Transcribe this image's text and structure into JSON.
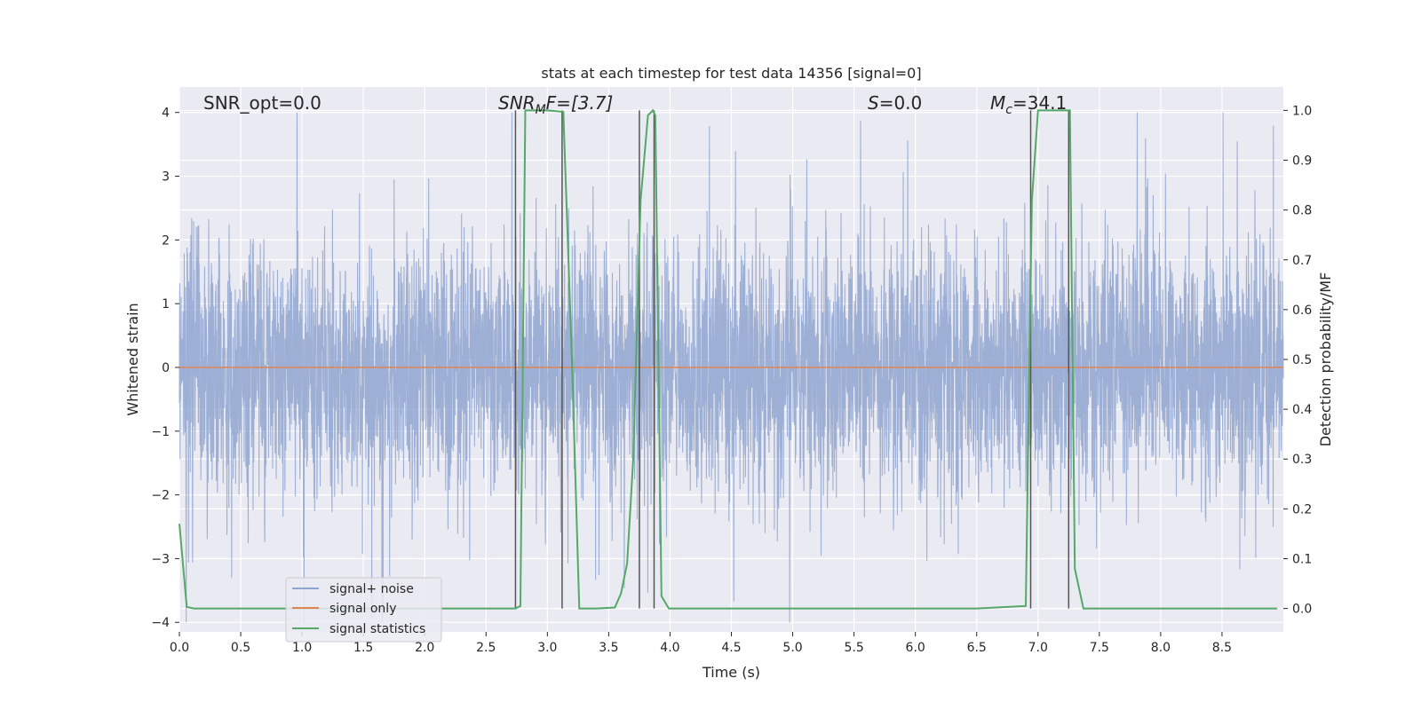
{
  "chart_data": {
    "type": "line",
    "title": "stats at each timestep for test data 14356 [signal=0]",
    "xlabel": "Time (s)",
    "ylabel_left": "Whitened strain",
    "ylabel_right": "Detection probability/MF",
    "xlim": [
      0,
      9
    ],
    "ylim_left": [
      -4.15,
      4.4
    ],
    "ylim_right": [
      -0.047,
      1.047
    ],
    "grid": true,
    "legend_position": "lower-left",
    "x_ticks": [
      "0.0",
      "0.5",
      "1.0",
      "1.5",
      "2.0",
      "2.5",
      "3.0",
      "3.5",
      "4.0",
      "4.5",
      "5.0",
      "5.5",
      "6.0",
      "6.5",
      "7.0",
      "7.5",
      "8.0",
      "8.5"
    ],
    "y_left_ticks": [
      "4",
      "3",
      "2",
      "1",
      "0",
      "−1",
      "−2",
      "−3",
      "−4"
    ],
    "y_right_ticks": [
      "1.0",
      "0.9",
      "0.8",
      "0.7",
      "0.6",
      "0.5",
      "0.4",
      "0.3",
      "0.2",
      "0.1",
      "0.0"
    ],
    "annotations": {
      "snr_opt": "SNR_opt=0.0",
      "snr_mf_main": "SNR",
      "snr_mf_sub": "M",
      "snr_mf_rest": "F=[3.7]",
      "s_main": "S",
      "s_rest": "=0.0",
      "mc_main": "M",
      "mc_sub": "c",
      "mc_rest": "=34.1"
    },
    "series": [
      {
        "name": "signal+ noise",
        "color": "#8fa5cf",
        "axis": "left",
        "description_type": "noise",
        "duration": 9,
        "sample_rate": 2048
      },
      {
        "name": "signal only",
        "color": "#dd8452",
        "axis": "left",
        "x": [
          0,
          9
        ],
        "y": [
          0,
          0
        ]
      },
      {
        "name": "signal statistics",
        "color": "#55a868",
        "axis": "right",
        "x": [
          0.0,
          0.06,
          0.12,
          0.5,
          1.0,
          1.5,
          2.0,
          2.5,
          2.74,
          2.78,
          2.82,
          2.88,
          3.0,
          3.13,
          3.2,
          3.26,
          3.4,
          3.55,
          3.6,
          3.65,
          3.7,
          3.76,
          3.82,
          3.86,
          3.88,
          3.93,
          3.99,
          4.5,
          5.0,
          5.5,
          6.0,
          6.5,
          6.9,
          6.95,
          7.0,
          7.05,
          7.2,
          7.26,
          7.3,
          7.37,
          7.5,
          8.0,
          8.5,
          8.95
        ],
        "y": [
          0.17,
          0.003,
          0.0,
          0.0,
          0.0,
          0.0,
          0.0,
          0.0,
          0.0,
          0.005,
          1.0,
          1.0,
          1.0,
          0.997,
          0.5,
          0.0,
          0.0,
          0.002,
          0.03,
          0.09,
          0.3,
          0.82,
          0.99,
          1.0,
          0.99,
          0.025,
          0.0,
          0.0,
          0.0,
          0.0,
          0.0,
          0.0,
          0.005,
          0.82,
          1.0,
          1.0,
          1.0,
          1.0,
          0.08,
          0.0,
          0.0,
          0.0,
          0.0,
          0.0
        ]
      }
    ],
    "vlines": {
      "color": "#555555",
      "x": [
        2.74,
        3.12,
        3.75,
        3.87,
        6.94,
        7.25
      ],
      "y_range": [
        0.0,
        1.0
      ]
    }
  }
}
